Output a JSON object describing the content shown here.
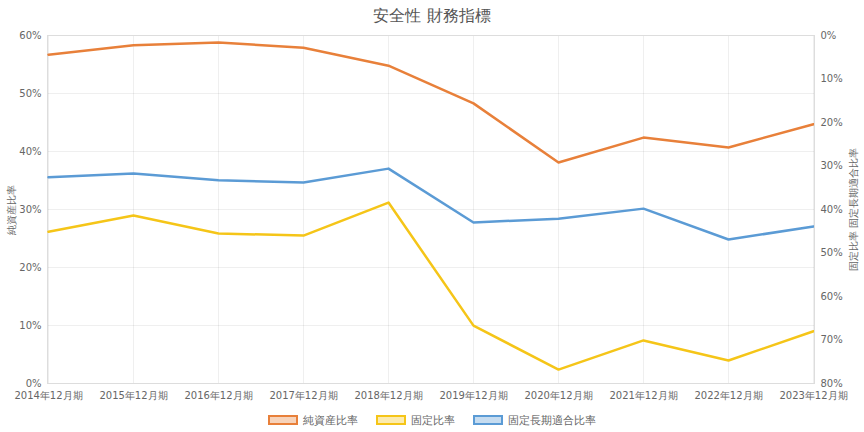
{
  "chart_data": {
    "type": "line",
    "title": "安全性 財務指標",
    "categories": [
      "2014年12月期",
      "2015年12月期",
      "2016年12月期",
      "2017年12月期",
      "2018年12月期",
      "2019年12月期",
      "2020年12月期",
      "2021年12月期",
      "2022年12月期",
      "2023年12月期"
    ],
    "ylabel": "純資産比率",
    "y2label": "固定比率 固定長期適合比率",
    "ylim": [
      0,
      60
    ],
    "yticks": [
      {
        "value": 0,
        "label": "0%"
      },
      {
        "value": 10,
        "label": "10%"
      },
      {
        "value": 20,
        "label": "20%"
      },
      {
        "value": 30,
        "label": "30%"
      },
      {
        "value": 40,
        "label": "40%"
      },
      {
        "value": 50,
        "label": "50%"
      },
      {
        "value": 60,
        "label": "60%"
      }
    ],
    "y2lim": [
      80,
      0
    ],
    "y2ticks": [
      {
        "value": 0,
        "label": "0%"
      },
      {
        "value": 10,
        "label": "10%"
      },
      {
        "value": 20,
        "label": "20%"
      },
      {
        "value": 30,
        "label": "30%"
      },
      {
        "value": 40,
        "label": "40%"
      },
      {
        "value": 50,
        "label": "50%"
      },
      {
        "value": 60,
        "label": "60%"
      },
      {
        "value": 70,
        "label": "70%"
      },
      {
        "value": 80,
        "label": "80%"
      }
    ],
    "grid": true,
    "legend": "bottom",
    "series": [
      {
        "name": "純資産比率",
        "color": "#e8803a",
        "values": [
          56.7,
          58.3,
          58.8,
          57.9,
          54.8,
          48.3,
          38.1,
          42.4,
          40.7,
          44.7
        ]
      },
      {
        "name": "固定比率",
        "color": "#f5c518",
        "axis": "y2",
        "values": [
          45.1,
          41.4,
          45.5,
          46.0,
          38.4,
          66.7,
          76.8,
          70.1,
          74.7,
          68.0
        ]
      },
      {
        "name": "固定長期適合比率",
        "color": "#5b9bd5",
        "axis": "y2",
        "values": [
          32.6,
          31.7,
          33.3,
          33.8,
          30.6,
          43.0,
          42.1,
          39.8,
          46.9,
          43.9
        ]
      }
    ]
  }
}
